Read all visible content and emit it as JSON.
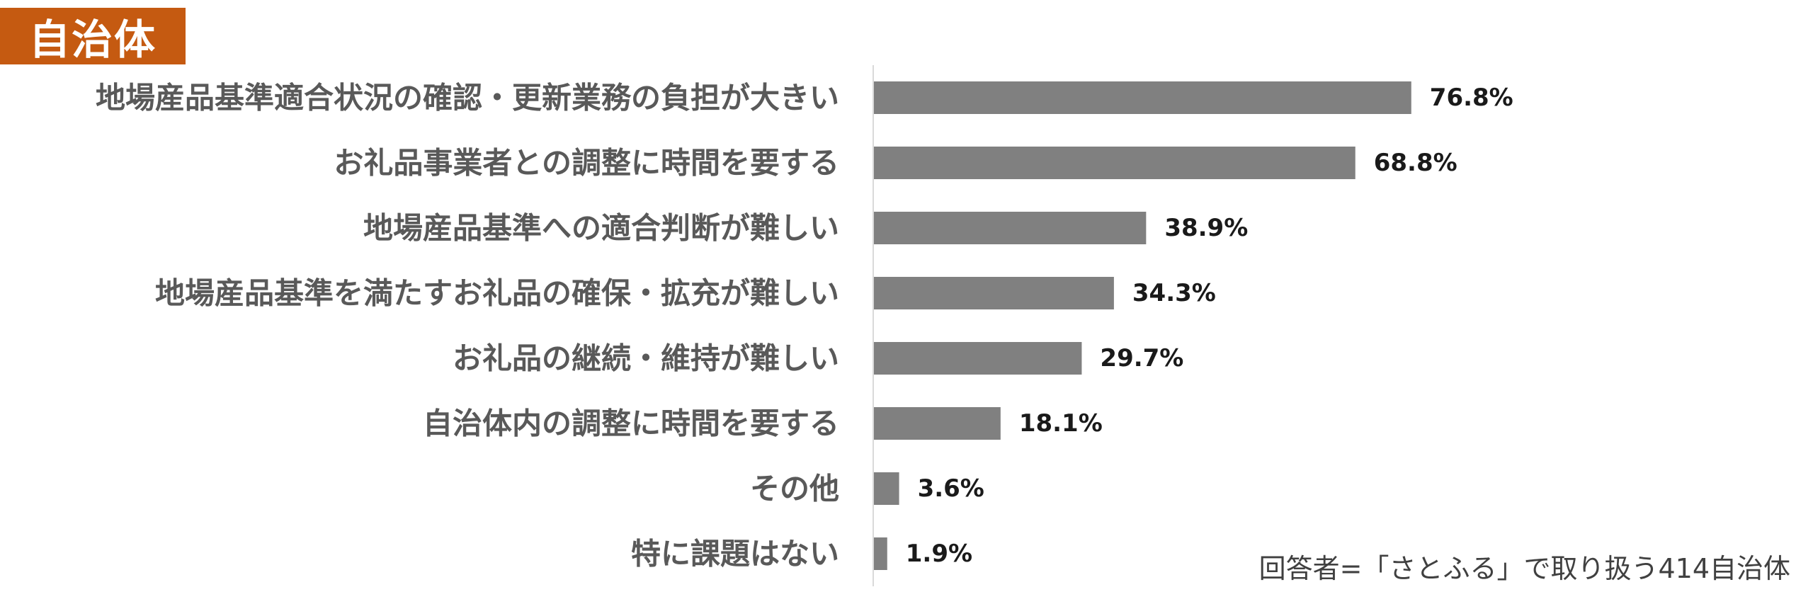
{
  "tag": {
    "label": "自治体",
    "color": "#c55a11"
  },
  "note": "回答者=「さとふる」で取り扱う414自治体",
  "chart_data": {
    "type": "bar",
    "orientation": "horizontal",
    "categories": [
      "地場産品基準適合状況の確認・更新業務の負担が大きい",
      "お礼品事業者との調整に時間を要する",
      "地場産品基準への適合判断が難しい",
      "地場産品基準を満たすお礼品の確保・拡充が難しい",
      "お礼品の継続・維持が難しい",
      "自治体内の調整に時間を要する",
      "その他",
      "特に課題はない"
    ],
    "values": [
      76.8,
      68.8,
      38.9,
      34.3,
      29.7,
      18.1,
      3.6,
      1.9
    ],
    "value_labels": [
      "76.8%",
      "68.8%",
      "38.9%",
      "34.3%",
      "29.7%",
      "18.1%",
      "3.6%",
      "1.9%"
    ],
    "unit": "%",
    "xlim": [
      0,
      100
    ],
    "grid": false,
    "bar_color": "#808080",
    "axis_color": "#d9d9d9"
  }
}
